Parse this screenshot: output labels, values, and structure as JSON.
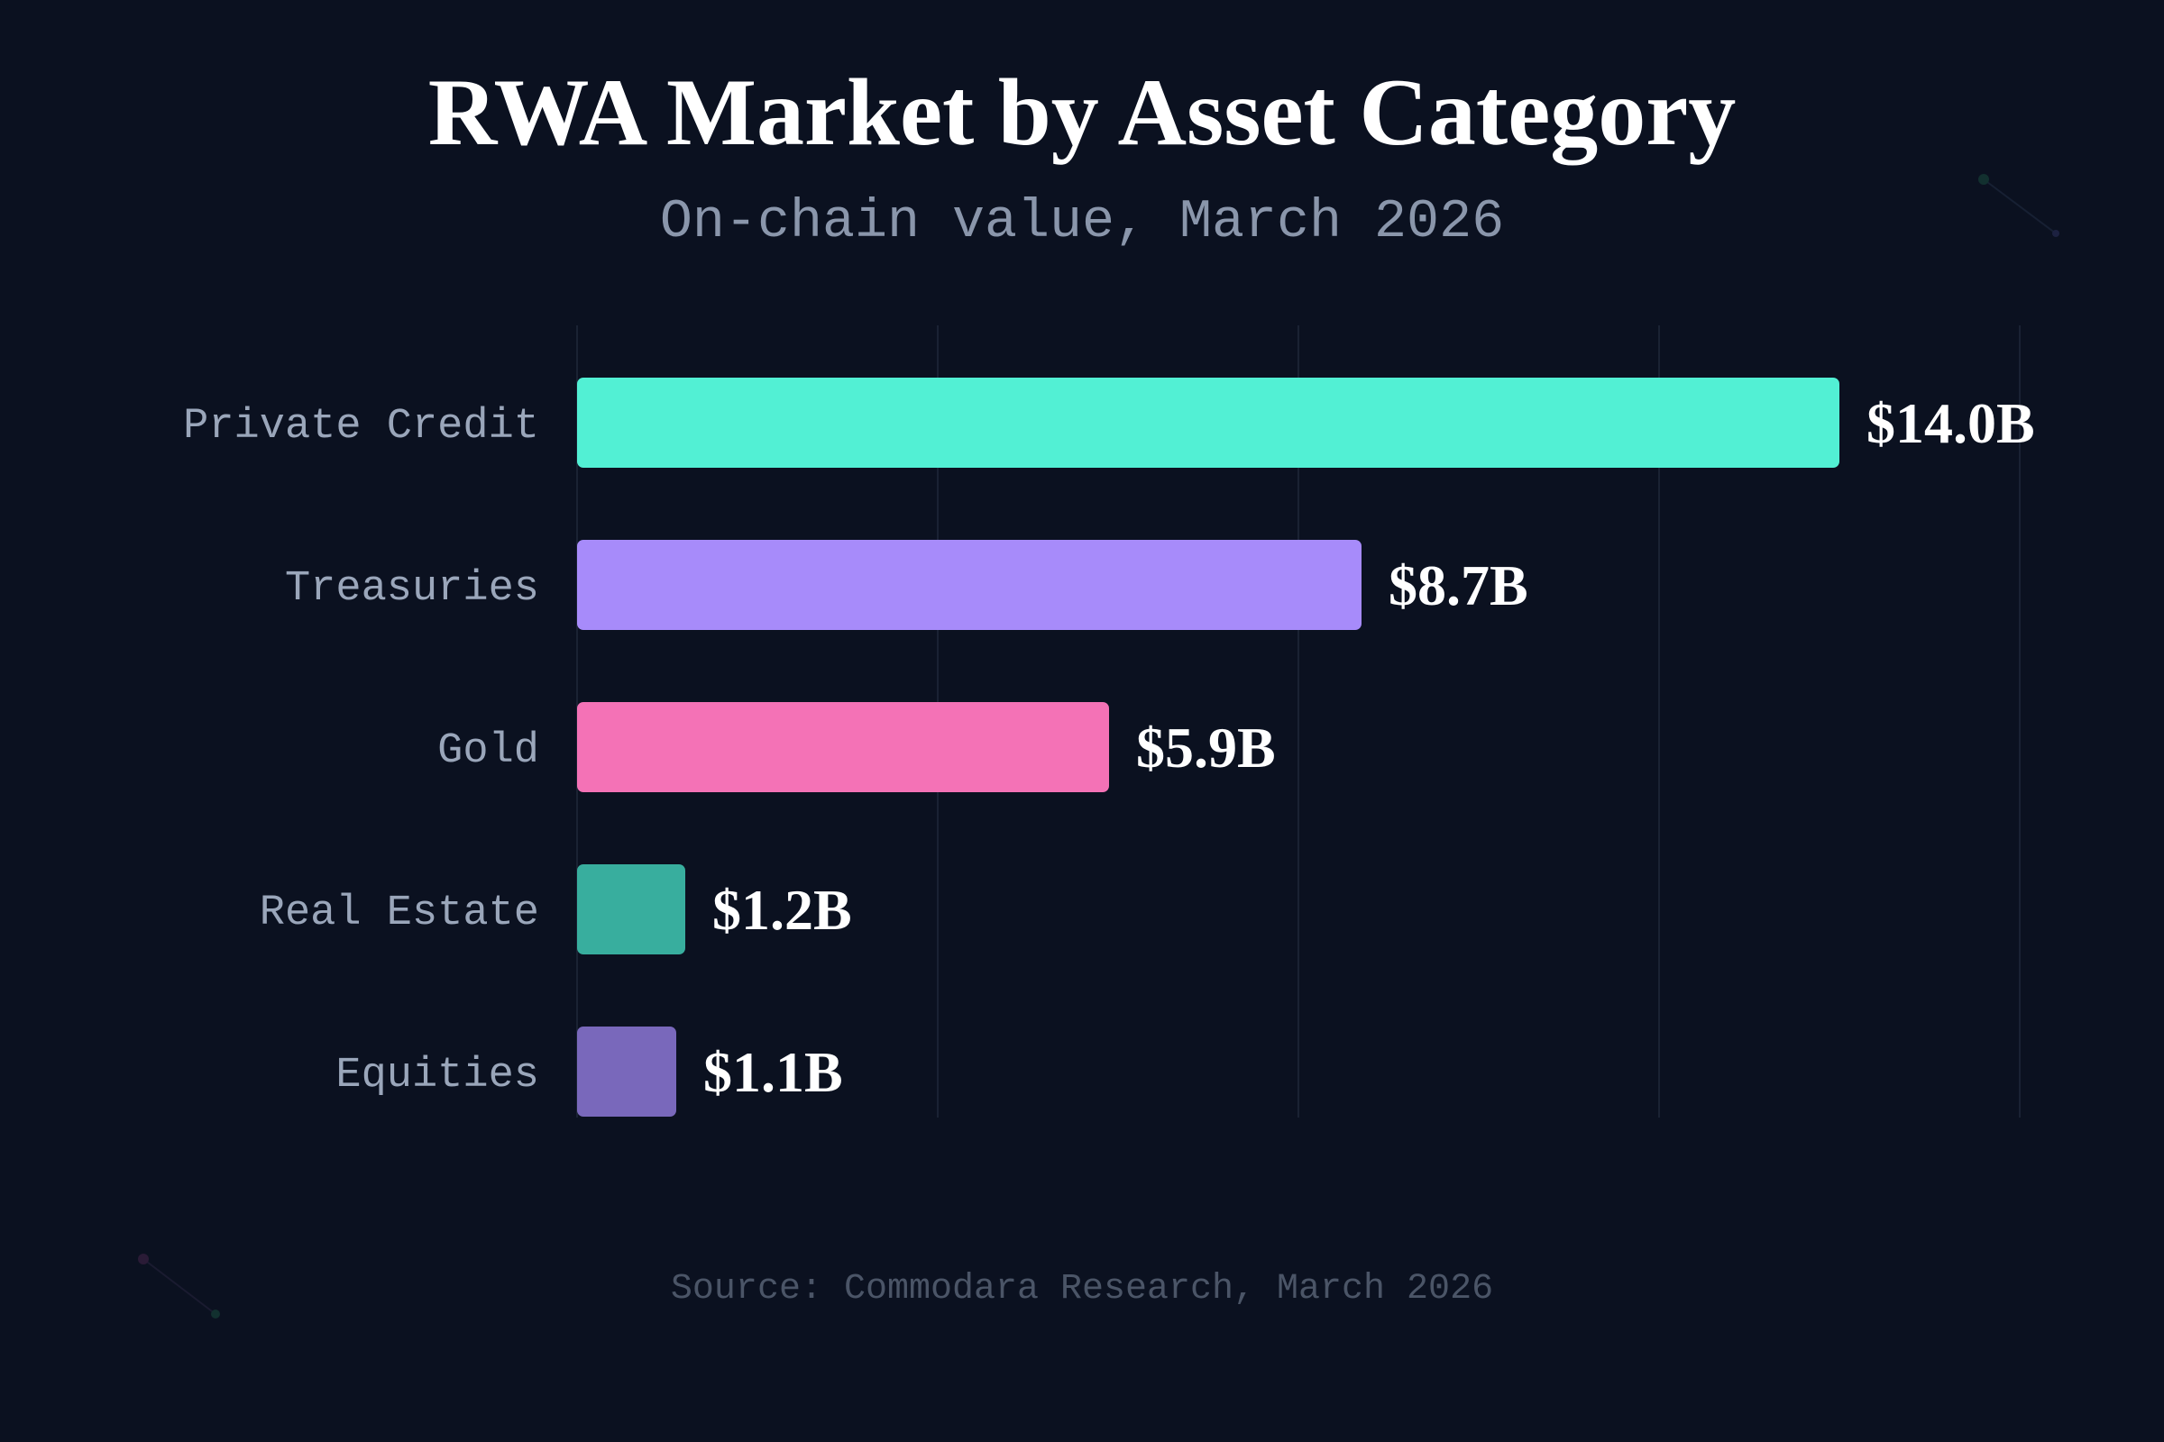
{
  "chart_data": {
    "type": "bar",
    "orientation": "horizontal",
    "title": "RWA Market by Asset Category",
    "subtitle": "On-chain value, March 2026",
    "source": "Source: Commodara Research, March 2026",
    "categories": [
      "Private Credit",
      "Treasuries",
      "Gold",
      "Real Estate",
      "Equities"
    ],
    "values": [
      14.0,
      8.7,
      5.9,
      1.2,
      1.1
    ],
    "value_labels": [
      "$14.0B",
      "$8.7B",
      "$5.9B",
      "$1.2B",
      "$1.1B"
    ],
    "colors": [
      "#52f0d4",
      "#a78bfa",
      "#f472b6",
      "#38ae9e",
      "#7968bb"
    ],
    "unit": "USD billions",
    "xlim": [
      0,
      16
    ],
    "gridlines_at": [
      0,
      4,
      8,
      12,
      16
    ],
    "grid": true,
    "background": "#0b1120"
  }
}
